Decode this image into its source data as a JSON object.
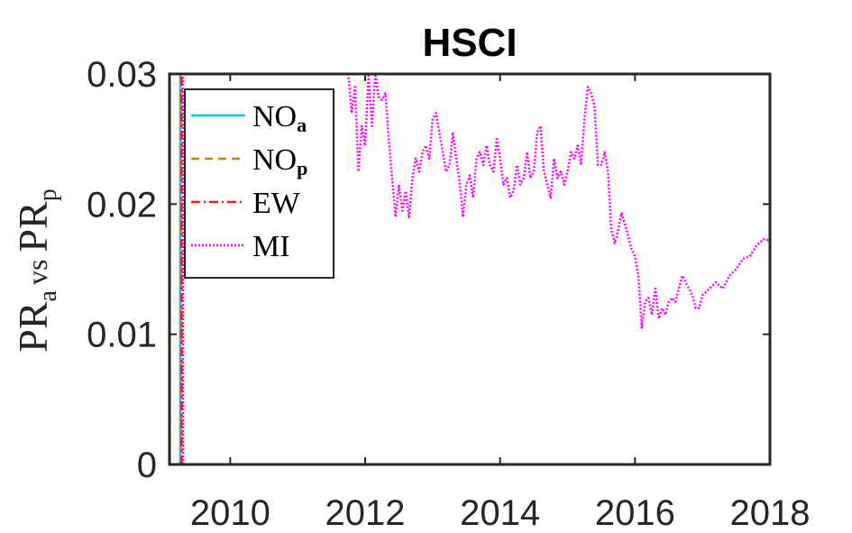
{
  "chart_data": {
    "type": "line",
    "title": "HSCI",
    "ylabel": {
      "main1": "PR",
      "sub1": "a",
      "mid": "vs",
      "main2": "PR",
      "sub2": "p"
    },
    "xlim": [
      2009.1,
      2018.0
    ],
    "ylim": [
      0,
      0.03
    ],
    "xticks": [
      2010,
      2012,
      2014,
      2016,
      2018
    ],
    "xtick_labels": [
      "2010",
      "2012",
      "2014",
      "2016",
      "2018"
    ],
    "yticks": [
      0,
      0.01,
      0.02,
      0.03
    ],
    "ytick_labels": [
      "0",
      "0.01",
      "0.02",
      "0.03"
    ],
    "legend_position": "top-left",
    "series": [
      {
        "name": "NO",
        "sub": "a",
        "color": "#00cccc",
        "style": "solid",
        "x": [
          2009.26,
          2009.26
        ],
        "y": [
          0,
          0.03
        ]
      },
      {
        "name": "NO",
        "sub": "p",
        "color": "#b8860b",
        "style": "dashed",
        "x": [
          2009.27,
          2009.27
        ],
        "y": [
          0,
          0.03
        ]
      },
      {
        "name": "EW",
        "sub": "",
        "color": "#e41a1c",
        "style": "dashdot",
        "x": [
          2009.28,
          2009.28
        ],
        "y": [
          0,
          0.03
        ]
      },
      {
        "name": "MI",
        "sub": "",
        "color": "#ff00ff",
        "style": "dotted",
        "x": [
          2009.3,
          2009.3,
          2011.75,
          2011.8,
          2011.85,
          2011.9,
          2011.95,
          2012.0,
          2012.05,
          2012.1,
          2012.15,
          2012.2,
          2012.25,
          2012.3,
          2012.35,
          2012.4,
          2012.45,
          2012.5,
          2012.55,
          2012.6,
          2012.65,
          2012.7,
          2012.75,
          2012.8,
          2012.85,
          2012.9,
          2012.95,
          2013.0,
          2013.05,
          2013.1,
          2013.15,
          2013.2,
          2013.25,
          2013.3,
          2013.35,
          2013.4,
          2013.45,
          2013.5,
          2013.55,
          2013.6,
          2013.65,
          2013.7,
          2013.75,
          2013.8,
          2013.85,
          2013.9,
          2013.95,
          2014.0,
          2014.05,
          2014.1,
          2014.15,
          2014.2,
          2014.25,
          2014.3,
          2014.35,
          2014.4,
          2014.45,
          2014.5,
          2014.55,
          2014.6,
          2014.65,
          2014.7,
          2014.75,
          2014.8,
          2014.85,
          2014.9,
          2014.95,
          2015.0,
          2015.05,
          2015.1,
          2015.15,
          2015.2,
          2015.25,
          2015.3,
          2015.35,
          2015.4,
          2015.45,
          2015.5,
          2015.55,
          2015.6,
          2015.65,
          2015.7,
          2015.75,
          2015.8,
          2015.85,
          2015.9,
          2015.95,
          2016.0,
          2016.05,
          2016.1,
          2016.15,
          2016.2,
          2016.25,
          2016.3,
          2016.35,
          2016.4,
          2016.45,
          2016.5,
          2016.55,
          2016.6,
          2016.65,
          2016.7,
          2016.75,
          2016.8,
          2016.85,
          2016.9,
          2016.95,
          2017.0,
          2017.1,
          2017.2,
          2017.3,
          2017.4,
          2017.5,
          2017.6,
          2017.7,
          2017.8,
          2017.9,
          2018.0
        ],
        "y": [
          0,
          0.03,
          0.03,
          0.027,
          0.029,
          0.0225,
          0.026,
          0.0245,
          0.03,
          0.026,
          0.03,
          0.0282,
          0.028,
          0.0285,
          0.025,
          0.022,
          0.019,
          0.0215,
          0.0195,
          0.021,
          0.019,
          0.022,
          0.0235,
          0.0225,
          0.024,
          0.0245,
          0.0235,
          0.0265,
          0.027,
          0.0255,
          0.024,
          0.0225,
          0.023,
          0.0255,
          0.0235,
          0.0218,
          0.019,
          0.0215,
          0.0222,
          0.0205,
          0.0235,
          0.024,
          0.023,
          0.0245,
          0.023,
          0.0225,
          0.025,
          0.0235,
          0.0215,
          0.022,
          0.0205,
          0.021,
          0.023,
          0.0215,
          0.022,
          0.024,
          0.022,
          0.0225,
          0.0255,
          0.026,
          0.0225,
          0.0215,
          0.0205,
          0.0235,
          0.022,
          0.0225,
          0.0215,
          0.0225,
          0.024,
          0.0235,
          0.0245,
          0.023,
          0.0265,
          0.029,
          0.0285,
          0.0275,
          0.023,
          0.023,
          0.024,
          0.0225,
          0.018,
          0.017,
          0.018,
          0.0193,
          0.0185,
          0.0175,
          0.0165,
          0.016,
          0.0145,
          0.0105,
          0.0125,
          0.0128,
          0.0115,
          0.0135,
          0.0112,
          0.012,
          0.0115,
          0.0125,
          0.0128,
          0.0125,
          0.0135,
          0.0145,
          0.014,
          0.0135,
          0.013,
          0.012,
          0.012,
          0.013,
          0.0135,
          0.014,
          0.0135,
          0.0145,
          0.015,
          0.0158,
          0.016,
          0.0168,
          0.0173,
          0.0172
        ]
      }
    ]
  }
}
